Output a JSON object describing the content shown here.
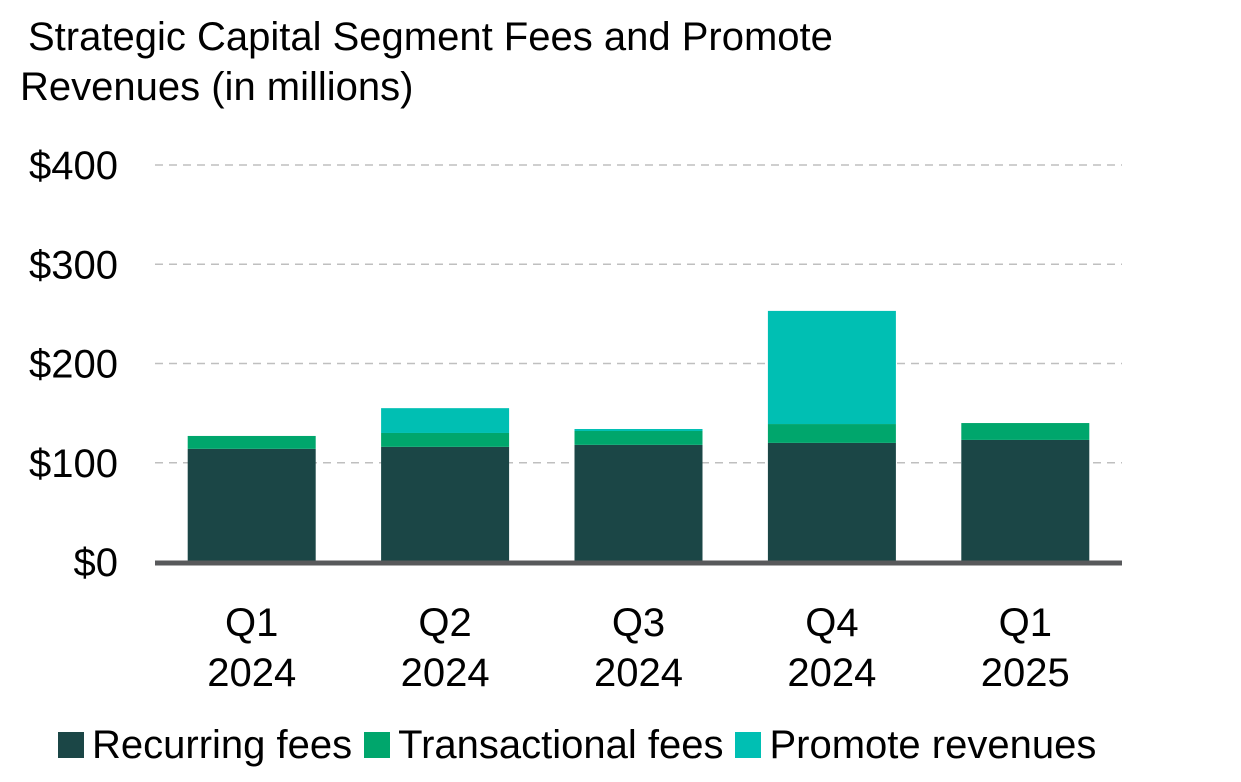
{
  "chart_data": {
    "type": "bar",
    "stacked": true,
    "title": "Strategic Capital Segment Fees and Promote Revenues (in millions)",
    "title_lines": [
      "Strategic Capital Segment Fees and Promote",
      "Revenues (in millions)"
    ],
    "xlabel": "",
    "ylabel": "",
    "ylim": [
      0,
      400
    ],
    "yticks": [
      0,
      100,
      200,
      300,
      400
    ],
    "ytick_labels": [
      "$0",
      "$100",
      "$200",
      "$300",
      "$400"
    ],
    "grid": true,
    "legend_position": "bottom",
    "categories": [
      [
        "Q1",
        "2024"
      ],
      [
        "Q2",
        "2024"
      ],
      [
        "Q3",
        "2024"
      ],
      [
        "Q4",
        "2024"
      ],
      [
        "Q1",
        "2025"
      ]
    ],
    "series": [
      {
        "name": "Recurring fees",
        "color": "#1b4646",
        "values": [
          114,
          116,
          118,
          120,
          123
        ]
      },
      {
        "name": "Transactional fees",
        "color": "#00a66c",
        "values": [
          13,
          14,
          14,
          19,
          17
        ]
      },
      {
        "name": "Promote revenues",
        "color": "#00bfb3",
        "values": [
          0,
          25,
          2,
          114,
          0
        ]
      }
    ],
    "colors": {
      "axis": "#58595b",
      "grid": "#bfbfbf"
    }
  }
}
